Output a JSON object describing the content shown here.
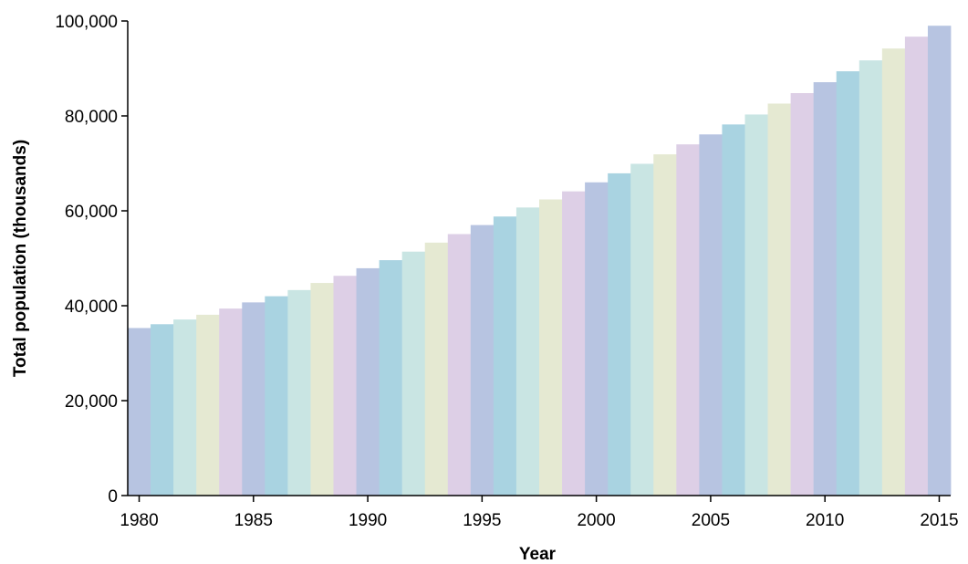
{
  "chart_data": {
    "type": "bar",
    "title": "",
    "xlabel": "Year",
    "ylabel": "Total population (thousands)",
    "ylim": [
      0,
      100000
    ],
    "y_ticks": [
      "0",
      "20,000",
      "40,000",
      "60,000",
      "80,000",
      "100,000"
    ],
    "y_tick_values": [
      0,
      20000,
      40000,
      60000,
      80000,
      100000
    ],
    "x_ticks": [
      "1980",
      "1985",
      "1990",
      "1995",
      "2000",
      "2005",
      "2010",
      "2015"
    ],
    "x_tick_values": [
      1980,
      1985,
      1990,
      1995,
      2000,
      2005,
      2010,
      2015
    ],
    "grid": false,
    "legend": "none",
    "palette": [
      "#b7c4e1",
      "#a9d3e1",
      "#c9e5e3",
      "#e5e9d2",
      "#ddcfe6"
    ],
    "categories": [
      1980,
      1981,
      1982,
      1983,
      1984,
      1985,
      1986,
      1987,
      1988,
      1989,
      1990,
      1991,
      1992,
      1993,
      1994,
      1995,
      1996,
      1997,
      1998,
      1999,
      2000,
      2001,
      2002,
      2003,
      2004,
      2005,
      2006,
      2007,
      2008,
      2009,
      2010,
      2011,
      2012,
      2013,
      2014,
      2015
    ],
    "values": [
      35300,
      36100,
      37100,
      38100,
      39400,
      40700,
      42000,
      43300,
      44800,
      46300,
      47900,
      49600,
      51400,
      53300,
      55100,
      57000,
      58800,
      60700,
      62400,
      64100,
      66000,
      67900,
      69900,
      71900,
      74000,
      76100,
      78200,
      80300,
      82600,
      84800,
      87100,
      89400,
      91700,
      94200,
      96700,
      99000
    ]
  }
}
